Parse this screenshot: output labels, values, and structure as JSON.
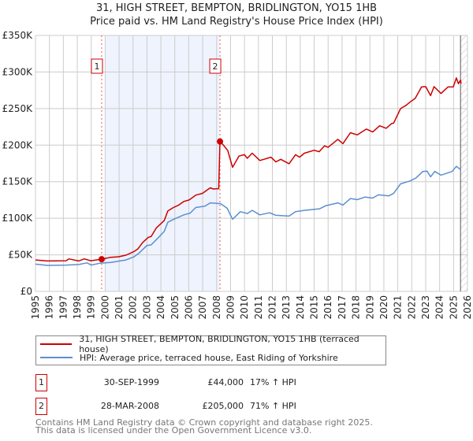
{
  "title": "31, HIGH STREET, BEMPTON, BRIDLINGTON, YO15 1HB",
  "subtitle": "Price paid vs. HM Land Registry's House Price Index (HPI)",
  "chart_data": {
    "type": "line",
    "title": "31, HIGH STREET, BEMPTON, BRIDLINGTON, YO15 1HB",
    "subtitle": "Price paid vs. HM Land Registry's House Price Index (HPI)",
    "xlabel": "",
    "ylabel": "",
    "xlim": [
      1995,
      2026
    ],
    "ylim": [
      0,
      350000
    ],
    "grid": true,
    "x_ticks": [
      "1995",
      "1996",
      "1997",
      "1998",
      "1999",
      "2000",
      "2001",
      "2002",
      "2003",
      "2004",
      "2005",
      "2006",
      "2007",
      "2008",
      "2009",
      "2010",
      "2011",
      "2012",
      "2013",
      "2014",
      "2015",
      "2016",
      "2017",
      "2018",
      "2019",
      "2020",
      "2021",
      "2022",
      "2023",
      "2024",
      "2025",
      "2026"
    ],
    "y_ticks": [
      {
        "value": 0,
        "label": "£0"
      },
      {
        "value": 50000,
        "label": "£50K"
      },
      {
        "value": 100000,
        "label": "£100K"
      },
      {
        "value": 150000,
        "label": "£150K"
      },
      {
        "value": 200000,
        "label": "£200K"
      },
      {
        "value": 250000,
        "label": "£250K"
      },
      {
        "value": 300000,
        "label": "£300K"
      },
      {
        "value": 350000,
        "label": "£350K"
      }
    ],
    "shaded_range": [
      2000,
      2008.2
    ],
    "forecast_hatch_from": 2025.5,
    "colors": {
      "property": "#cc0000",
      "hpi": "#5b8fd0",
      "shade": "#eef3fd"
    },
    "series": [
      {
        "name": "31, HIGH STREET, BEMPTON, BRIDLINGTON, YO15 1HB (terraced house)",
        "color": "#cc0000",
        "points": [
          [
            1995.0,
            43000
          ],
          [
            1995.85,
            41600
          ],
          [
            1997.2,
            41900
          ],
          [
            1997.4,
            44500
          ],
          [
            1998.1,
            41600
          ],
          [
            1998.5,
            44500
          ],
          [
            1998.96,
            41900
          ],
          [
            1999.75,
            44000
          ],
          [
            2000.4,
            46600
          ],
          [
            2000.94,
            47300
          ],
          [
            2001.5,
            49500
          ],
          [
            2002.07,
            54500
          ],
          [
            2002.35,
            58000
          ],
          [
            2002.7,
            67000
          ],
          [
            2003.1,
            74000
          ],
          [
            2003.3,
            75000
          ],
          [
            2003.67,
            86800
          ],
          [
            2004.24,
            96800
          ],
          [
            2004.5,
            110000
          ],
          [
            2004.9,
            114700
          ],
          [
            2005.28,
            118000
          ],
          [
            2005.65,
            123000
          ],
          [
            2006.03,
            125000
          ],
          [
            2006.5,
            131600
          ],
          [
            2006.97,
            134000
          ],
          [
            2007.54,
            141600
          ],
          [
            2007.77,
            140000
          ],
          [
            2008.15,
            140500
          ],
          [
            2008.24,
            205000
          ],
          [
            2008.46,
            200700
          ],
          [
            2008.8,
            192500
          ],
          [
            2009.14,
            169600
          ],
          [
            2009.6,
            185000
          ],
          [
            2009.99,
            187000
          ],
          [
            2010.2,
            182000
          ],
          [
            2010.55,
            189000
          ],
          [
            2011.1,
            179000
          ],
          [
            2011.9,
            183500
          ],
          [
            2012.25,
            177000
          ],
          [
            2012.6,
            180600
          ],
          [
            2013.2,
            174600
          ],
          [
            2013.66,
            187000
          ],
          [
            2013.95,
            183500
          ],
          [
            2014.3,
            189000
          ],
          [
            2015.0,
            193000
          ],
          [
            2015.36,
            191000
          ],
          [
            2015.74,
            199000
          ],
          [
            2016.0,
            197000
          ],
          [
            2016.7,
            208000
          ],
          [
            2017.06,
            202000
          ],
          [
            2017.6,
            217000
          ],
          [
            2018.1,
            214000
          ],
          [
            2018.5,
            219000
          ],
          [
            2018.75,
            222000
          ],
          [
            2019.2,
            218000
          ],
          [
            2019.7,
            226500
          ],
          [
            2020.17,
            223000
          ],
          [
            2020.55,
            229500
          ],
          [
            2020.7,
            230000
          ],
          [
            2021.2,
            250000
          ],
          [
            2021.6,
            254500
          ],
          [
            2021.87,
            258800
          ],
          [
            2022.25,
            264000
          ],
          [
            2022.7,
            279600
          ],
          [
            2023.0,
            280000
          ],
          [
            2023.35,
            267700
          ],
          [
            2023.6,
            280000
          ],
          [
            2024.1,
            270600
          ],
          [
            2024.6,
            279600
          ],
          [
            2024.98,
            279600
          ],
          [
            2025.2,
            292000
          ],
          [
            2025.35,
            284000
          ],
          [
            2025.5,
            289000
          ],
          [
            2025.54,
            284000
          ]
        ]
      },
      {
        "name": "HPI: Average price, terraced house, East Riding of Yorkshire",
        "color": "#5b8fd0",
        "points": [
          [
            1995.0,
            37300
          ],
          [
            1995.85,
            35500
          ],
          [
            1997.2,
            36000
          ],
          [
            1998.1,
            36700
          ],
          [
            1998.7,
            39000
          ],
          [
            1999.0,
            36000
          ],
          [
            1999.6,
            38500
          ],
          [
            2000.4,
            39500
          ],
          [
            2001.5,
            43000
          ],
          [
            2002.07,
            47300
          ],
          [
            2002.45,
            52700
          ],
          [
            2003.0,
            62800
          ],
          [
            2003.3,
            63500
          ],
          [
            2003.77,
            72500
          ],
          [
            2004.24,
            82000
          ],
          [
            2004.5,
            94600
          ],
          [
            2005.0,
            99300
          ],
          [
            2005.65,
            104700
          ],
          [
            2006.1,
            107000
          ],
          [
            2006.5,
            114700
          ],
          [
            2007.16,
            116500
          ],
          [
            2007.54,
            121000
          ],
          [
            2008.29,
            120000
          ],
          [
            2008.76,
            113600
          ],
          [
            2009.14,
            98600
          ],
          [
            2009.7,
            109000
          ],
          [
            2010.2,
            106500
          ],
          [
            2010.55,
            110800
          ],
          [
            2011.1,
            104700
          ],
          [
            2011.8,
            107500
          ],
          [
            2012.25,
            104000
          ],
          [
            2013.2,
            103000
          ],
          [
            2013.66,
            109000
          ],
          [
            2014.3,
            110800
          ],
          [
            2015.4,
            113000
          ],
          [
            2015.8,
            117000
          ],
          [
            2016.7,
            121000
          ],
          [
            2017.06,
            118000
          ],
          [
            2017.6,
            127000
          ],
          [
            2018.1,
            125500
          ],
          [
            2018.65,
            129000
          ],
          [
            2019.2,
            127600
          ],
          [
            2019.6,
            132000
          ],
          [
            2020.35,
            130500
          ],
          [
            2020.7,
            134000
          ],
          [
            2021.2,
            147000
          ],
          [
            2021.87,
            151000
          ],
          [
            2022.3,
            155000
          ],
          [
            2022.8,
            164000
          ],
          [
            2023.1,
            164500
          ],
          [
            2023.35,
            156700
          ],
          [
            2023.65,
            164000
          ],
          [
            2024.1,
            159000
          ],
          [
            2024.9,
            164000
          ],
          [
            2025.2,
            171000
          ],
          [
            2025.54,
            166000
          ]
        ]
      }
    ],
    "sales": [
      {
        "label": "1",
        "x": 1999.75,
        "value": 44000
      },
      {
        "label": "2",
        "x": 2008.24,
        "value": 205000
      }
    ]
  },
  "legend": {
    "property_label": "31, HIGH STREET, BEMPTON, BRIDLINGTON, YO15 1HB (terraced house)",
    "hpi_label": "HPI: Average price, terraced house, East Riding of Yorkshire"
  },
  "transactions": [
    {
      "num": "1",
      "date": "30-SEP-1999",
      "price": "£44,000",
      "hpi": "17% ↑ HPI"
    },
    {
      "num": "2",
      "date": "28-MAR-2008",
      "price": "£205,000",
      "hpi": "71% ↑ HPI"
    }
  ],
  "footer": {
    "line1": "Contains HM Land Registry data © Crown copyright and database right 2025.",
    "line2": "This data is licensed under the Open Government Licence v3.0."
  }
}
